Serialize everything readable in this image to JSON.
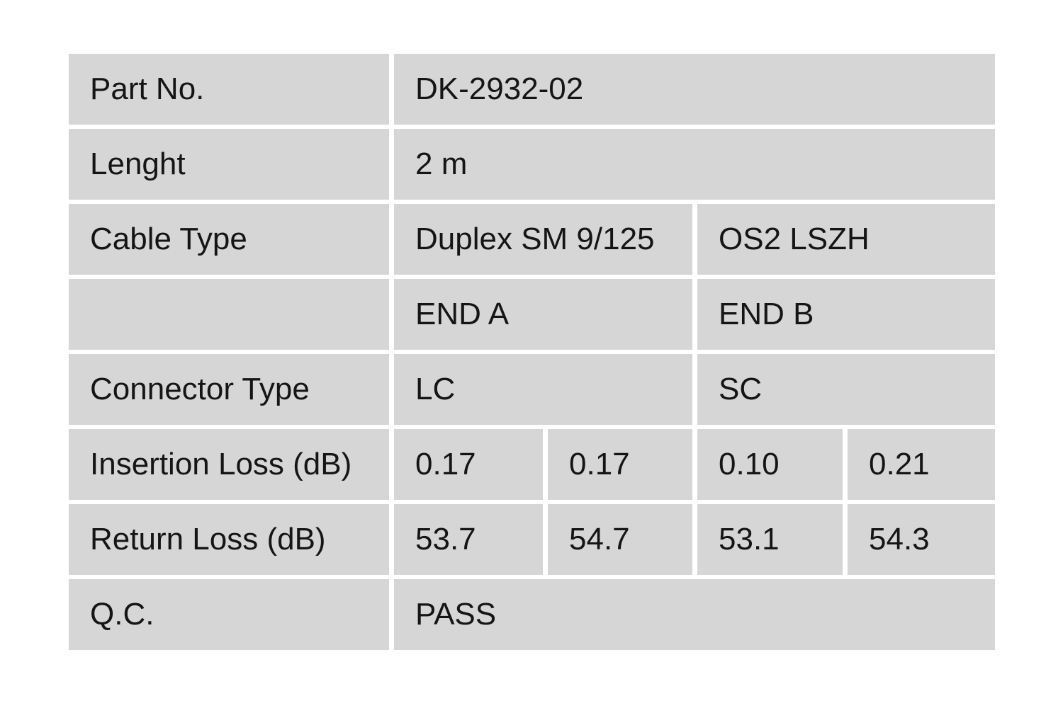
{
  "colors": {
    "cell_background": "#d6d6d6",
    "page_background": "#ffffff",
    "text": "#151515"
  },
  "table": {
    "rows": [
      {
        "label": "Part No.",
        "values": [
          "DK-2932-02"
        ]
      },
      {
        "label": "Lenght",
        "values": [
          "2 m"
        ]
      },
      {
        "label": "Cable Type",
        "values": [
          "Duplex SM 9/125",
          "OS2 LSZH"
        ]
      },
      {
        "label": "",
        "values": [
          "END A",
          "END B"
        ]
      },
      {
        "label": "Connector Type",
        "values": [
          "LC",
          "SC"
        ]
      },
      {
        "label": "Insertion Loss (dB)",
        "values": [
          "0.17",
          "0.17",
          "0.10",
          "0.21"
        ]
      },
      {
        "label": "Return Loss (dB)",
        "values": [
          "53.7",
          "54.7",
          "53.1",
          "54.3"
        ]
      },
      {
        "label": "Q.C.",
        "values": [
          "PASS"
        ]
      }
    ]
  }
}
